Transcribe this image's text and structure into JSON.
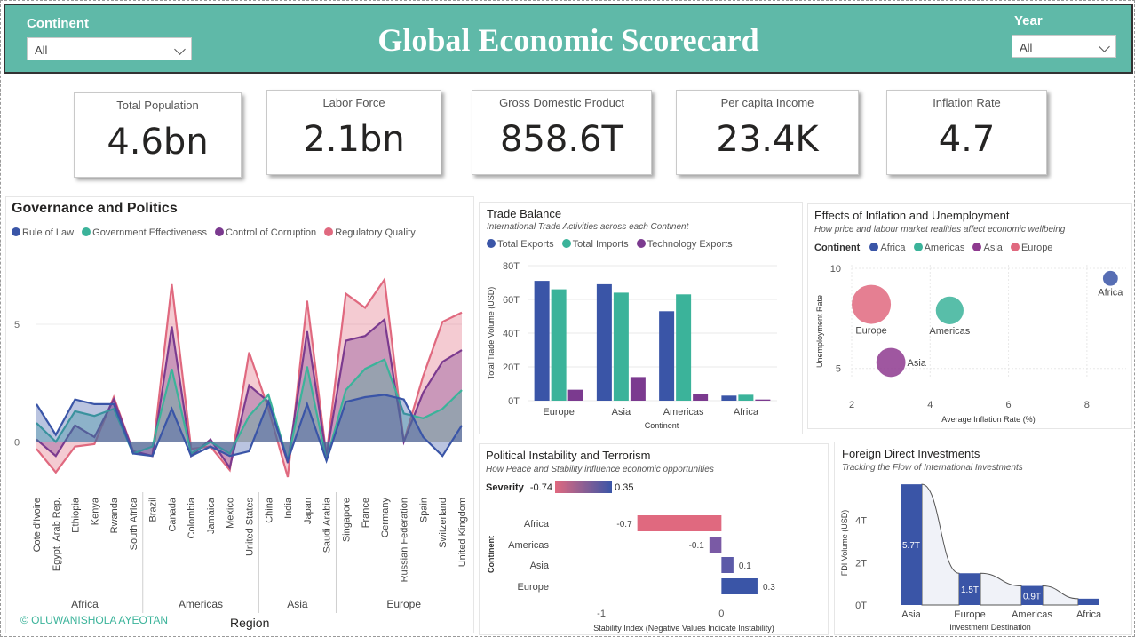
{
  "header": {
    "title": "Global Economic Scorecard",
    "continent_label": "Continent",
    "continent_value": "All",
    "year_label": "Year",
    "year_value": "All"
  },
  "kpis": [
    {
      "label": "Total Population",
      "value": "4.6bn"
    },
    {
      "label": "Labor Force",
      "value": "2.1bn"
    },
    {
      "label": "Gross Domestic Product",
      "value": "858.6T"
    },
    {
      "label": "Per capita Income",
      "value": "23.4K"
    },
    {
      "label": "Inflation Rate",
      "value": "4.7"
    }
  ],
  "colors": {
    "rule_of_law": "#3a55a7",
    "gov_eff": "#3bb39a",
    "corruption": "#7b3a8f",
    "regulatory": "#e0697f",
    "header_bg": "#5fb9a8",
    "africa": "#3a55a7",
    "americas": "#3bb39a",
    "asia": "#8e3a8f",
    "europe": "#e0697f"
  },
  "governance": {
    "title": "Governance and Politics",
    "legend": [
      "Rule of Law",
      "Government Effectiveness",
      "Control of Corruption",
      "Regulatory Quality"
    ],
    "yticks": [
      "5",
      "0"
    ],
    "region_label": "Region",
    "groups": [
      "Africa",
      "Americas",
      "Asia",
      "Europe"
    ],
    "copyright": "© OLUWANISHOLA AYEOTAN"
  },
  "trade": {
    "title": "Trade Balance",
    "subtitle": "International Trade Activities across each Continent",
    "legend": [
      "Total Exports",
      "Total Imports",
      "Technology Exports"
    ],
    "yticks": [
      "80T",
      "60T",
      "40T",
      "20T",
      "0T"
    ],
    "ylabel": "Total Trade Volume (USD)",
    "xlabel": "Continent"
  },
  "inflation": {
    "title": "Effects of Inflation and Unemployment",
    "subtitle": "How price and labour market realities affect economic wellbeing",
    "legend_title": "Continent",
    "legend": [
      "Africa",
      "Americas",
      "Asia",
      "Europe"
    ],
    "xlabel": "Average Inflation Rate (%)",
    "ylabel": "Unemployment Rate",
    "xticks": [
      "2",
      "4",
      "6",
      "8"
    ],
    "yticks": [
      "10",
      "5"
    ]
  },
  "political": {
    "title": "Political Instability and Terrorism",
    "subtitle": "How Peace and Stability influence economic opportunities",
    "severity_label": "Severity",
    "severity_min": "-0.74",
    "severity_max": "0.35",
    "ylabel": "Continent",
    "xlabel": "Stability Index (Negative Values Indicate Instability)",
    "xticks": [
      "-1",
      "0"
    ]
  },
  "fdi": {
    "title": "Foreign Direct Investments",
    "subtitle": "Tracking the Flow of International Investments",
    "ylabel": "FDI Volume (USD)",
    "xlabel": "Investment Destination",
    "yticks": [
      "4T",
      "2T",
      "0T"
    ]
  },
  "chart_data": [
    {
      "type": "area",
      "title": "Governance and Politics",
      "xlabel": "Region",
      "categories": [
        "Cote d'Ivoire",
        "Egypt, Arab Rep.",
        "Ethiopia",
        "Kenya",
        "Rwanda",
        "South Africa",
        "Brazil",
        "Canada",
        "Colombia",
        "Jamaica",
        "Mexico",
        "United States",
        "China",
        "India",
        "Japan",
        "Saudi Arabia",
        "Singapore",
        "France",
        "Germany",
        "Russian Federation",
        "Spain",
        "Switzerland",
        "United Kingdom"
      ],
      "groups": [
        {
          "name": "Africa",
          "count": 6
        },
        {
          "name": "Americas",
          "count": 6
        },
        {
          "name": "Asia",
          "count": 4
        },
        {
          "name": "Europe",
          "count": 7
        }
      ],
      "ylim": [
        -1.5,
        7
      ],
      "series": [
        {
          "name": "Rule of Law",
          "values": [
            1.6,
            0.3,
            1.8,
            1.6,
            1.6,
            -0.5,
            -0.6,
            1.4,
            -0.6,
            -0.2,
            -0.6,
            -0.4,
            1.7,
            -0.8,
            1.6,
            -0.8,
            1.7,
            1.9,
            2.0,
            1.8,
            0.2,
            -0.6,
            0.7
          ]
        },
        {
          "name": "Government Effectiveness",
          "values": [
            0.8,
            0.0,
            1.3,
            1.1,
            1.4,
            -0.5,
            -0.2,
            3.1,
            -0.5,
            -0.0,
            -0.5,
            1.1,
            2.0,
            -0.8,
            3.2,
            -0.8,
            2.2,
            3.1,
            3.5,
            1.2,
            1.0,
            1.4,
            2.2
          ]
        },
        {
          "name": "Control of Corruption",
          "values": [
            0.1,
            -0.6,
            0.7,
            0.2,
            1.8,
            -0.4,
            -0.6,
            4.9,
            -0.6,
            0.1,
            -1.1,
            2.4,
            1.7,
            -0.9,
            4.7,
            -0.6,
            4.3,
            4.5,
            5.2,
            0.0,
            2.1,
            3.4,
            3.9
          ]
        },
        {
          "name": "Regulatory Quality",
          "values": [
            -0.3,
            -1.3,
            -0.2,
            -0.1,
            1.9,
            -0.4,
            -0.6,
            6.7,
            -0.3,
            -0.2,
            -1.2,
            3.8,
            1.4,
            -1.5,
            6.0,
            -0.6,
            6.3,
            5.7,
            6.9,
            0.0,
            2.8,
            5.1,
            5.5
          ]
        }
      ]
    },
    {
      "type": "bar",
      "title": "Trade Balance",
      "categories": [
        "Europe",
        "Asia",
        "Americas",
        "Africa"
      ],
      "ylabel": "Total Trade Volume (USD)",
      "xlabel": "Continent",
      "ylim": [
        0,
        80
      ],
      "series": [
        {
          "name": "Total Exports",
          "values": [
            71,
            69,
            53,
            3
          ]
        },
        {
          "name": "Total Imports",
          "values": [
            66,
            64,
            63,
            3.5
          ]
        },
        {
          "name": "Technology Exports",
          "values": [
            6.5,
            14,
            4,
            0.7
          ]
        }
      ]
    },
    {
      "type": "scatter",
      "title": "Effects of Inflation and Unemployment",
      "xlabel": "Average Inflation Rate (%)",
      "ylabel": "Unemployment Rate",
      "xlim": [
        2,
        9
      ],
      "ylim": [
        4.5,
        10
      ],
      "points": [
        {
          "name": "Africa",
          "x": 8.6,
          "y": 9.5,
          "size": 0.15
        },
        {
          "name": "Americas",
          "x": 4.5,
          "y": 7.9,
          "size": 0.6
        },
        {
          "name": "Asia",
          "x": 3.0,
          "y": 5.3,
          "size": 0.65
        },
        {
          "name": "Europe",
          "x": 2.5,
          "y": 8.2,
          "size": 1.0
        }
      ]
    },
    {
      "type": "bar",
      "title": "Political Instability and Terrorism",
      "orientation": "horizontal",
      "xlabel": "Stability Index (Negative Values Indicate Instability)",
      "ylabel": "Continent",
      "xlim": [
        -1.2,
        0.5
      ],
      "categories": [
        "Africa",
        "Americas",
        "Asia",
        "Europe"
      ],
      "values": [
        -0.7,
        -0.1,
        0.1,
        0.3
      ],
      "value_labels": [
        "-0.7",
        "-0.1",
        "0.1",
        "0.3"
      ]
    },
    {
      "type": "bar",
      "title": "Foreign Direct Investments",
      "xlabel": "Investment Destination",
      "ylabel": "FDI Volume (USD)",
      "ylim": [
        0,
        6
      ],
      "categories": [
        "Asia",
        "Europe",
        "Americas",
        "Africa"
      ],
      "values": [
        5.7,
        1.5,
        0.9,
        0.3
      ],
      "value_labels": [
        "5.7T",
        "1.5T",
        "0.9T",
        ""
      ]
    }
  ]
}
